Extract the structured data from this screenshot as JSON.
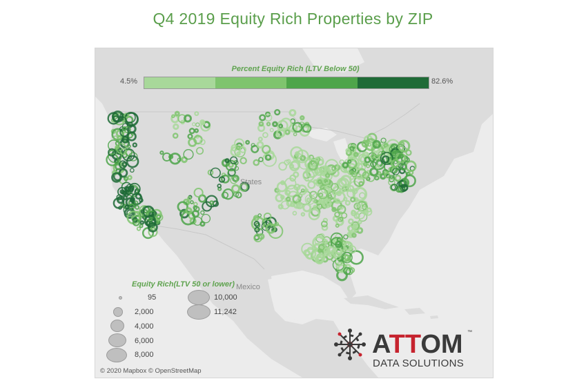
{
  "title": "Q4 2019 Equity Rich Properties by ZIP",
  "color_scale": {
    "title": "Percent Equity Rich (LTV Below 50)",
    "min_label": "4.5%",
    "max_label": "82.6%",
    "min": 4.5,
    "max": 82.6,
    "colors": [
      "#a8d89a",
      "#7fc46e",
      "#4ea54a",
      "#1f6b37"
    ]
  },
  "size_legend": {
    "title": "Equity Rich(LTV 50 or lower)",
    "items": [
      {
        "label": "95",
        "value": 95
      },
      {
        "label": "2,000",
        "value": 2000
      },
      {
        "label": "4,000",
        "value": 4000
      },
      {
        "label": "6,000",
        "value": 6000
      },
      {
        "label": "8,000",
        "value": 8000
      },
      {
        "label": "10,000",
        "value": 10000
      },
      {
        "label": "11,242",
        "value": 11242
      }
    ]
  },
  "map_labels": {
    "country": "States",
    "mexico": "Mexico"
  },
  "attribution": "© 2020 Mapbox © OpenStreetMap",
  "logo": {
    "name_a": "A",
    "name_tt": "TT",
    "name_om": "OM",
    "trademark": "™",
    "tagline": "DATA SOLUTIONS"
  }
}
